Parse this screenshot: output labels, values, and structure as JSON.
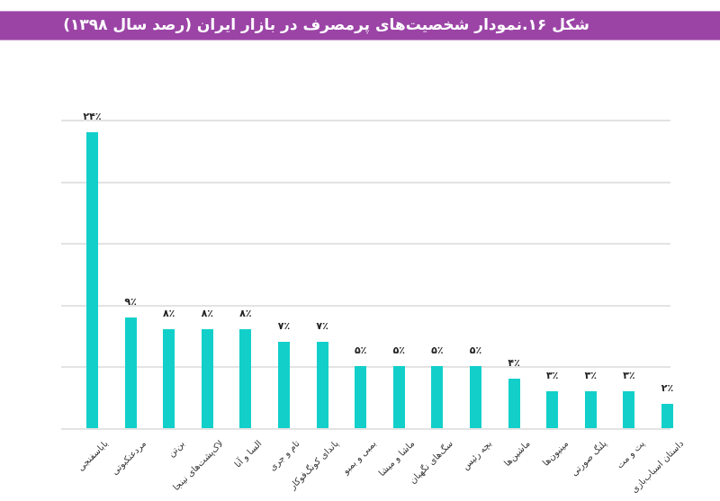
{
  "header": {
    "title": "شکل ۱۶.نمودار شخصیت‌های پرمصرف در بازار ایران (رصد سال ۱۳۹۸)"
  },
  "colors": {
    "header_bg": "#9b44a6",
    "bar": "#12cfca",
    "grid": "#e3e3e3"
  },
  "chart_data": {
    "type": "bar",
    "title": "شکل ۱۶.نمودار شخصیت‌های پرمصرف در بازار ایران (رصد سال ۱۳۹۸)",
    "xlabel": "",
    "ylabel": "",
    "ylim": [
      0,
      25
    ],
    "grid": true,
    "legend": null,
    "categories": [
      "باباسفنجی",
      "مردعنکبوتی",
      "بن‌تن",
      "لاک‌پشت‌های نینجا",
      "السا و آنا",
      "تام و جری",
      "پاندای کونگ‌فوکار",
      "بمبی و بمبو",
      "ماشا و میشا",
      "سگ‌های نگهبان",
      "بچه رئیس",
      "ماشین‌ها",
      "مینیون‌ها",
      "پلنگ صورتی",
      "پت و مت",
      "داستان اسباب‌بازی"
    ],
    "values": [
      24,
      9,
      8,
      8,
      8,
      7,
      7,
      5,
      5,
      5,
      5,
      4,
      3,
      3,
      3,
      2
    ],
    "value_labels": [
      "۲۴٪",
      "۹٪",
      "۸٪",
      "۸٪",
      "۸٪",
      "۷٪",
      "۷٪",
      "۵٪",
      "۵٪",
      "۵٪",
      "۵٪",
      "۴٪",
      "۳٪",
      "۳٪",
      "۳٪",
      "۲٪"
    ],
    "gridlines": [
      0,
      5,
      10,
      15,
      20,
      25
    ]
  }
}
